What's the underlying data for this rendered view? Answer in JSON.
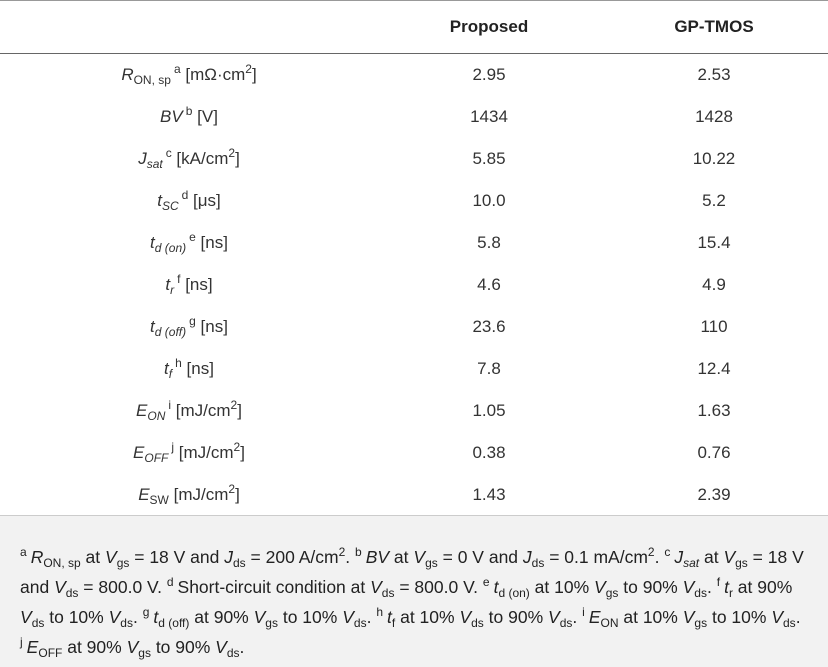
{
  "table": {
    "columns": [
      "Proposed",
      "GP-TMOS"
    ],
    "rows": [
      {
        "label": [
          "R",
          "ON, sp",
          "a",
          " [mΩ·cm",
          "2",
          "]"
        ],
        "proposed": "2.95",
        "gp_tmos": "2.53"
      },
      {
        "label": [
          "BV",
          "b",
          " [V]"
        ],
        "proposed": "1434",
        "gp_tmos": "1428"
      },
      {
        "label": [
          "J",
          "sat",
          "c",
          " [kA/cm",
          "2",
          "]"
        ],
        "proposed": "5.85",
        "gp_tmos": "10.22"
      },
      {
        "label": [
          "t",
          "SC",
          "d",
          " [μs]"
        ],
        "proposed": "10.0",
        "gp_tmos": "5.2"
      },
      {
        "label": [
          "t",
          "d (on)",
          "e",
          " [ns]"
        ],
        "proposed": "5.8",
        "gp_tmos": "15.4"
      },
      {
        "label": [
          "t",
          "r",
          "f",
          " [ns]"
        ],
        "proposed": "4.6",
        "gp_tmos": "4.9"
      },
      {
        "label": [
          "t",
          "d (off)",
          "g",
          " [ns]"
        ],
        "proposed": "23.6",
        "gp_tmos": "110"
      },
      {
        "label": [
          "t",
          "f",
          "h",
          " [ns]"
        ],
        "proposed": "7.8",
        "gp_tmos": "12.4"
      },
      {
        "label": [
          "E",
          "ON",
          "i",
          " [mJ/cm",
          "2",
          "]"
        ],
        "proposed": "1.05",
        "gp_tmos": "1.63"
      },
      {
        "label": [
          "E",
          "OFF",
          "j",
          " [mJ/cm",
          "2",
          "]"
        ],
        "proposed": "0.38",
        "gp_tmos": "0.76"
      },
      {
        "label": [
          "E",
          "SW",
          " [mJ/cm",
          "2",
          "]"
        ],
        "proposed": "1.43",
        "gp_tmos": "2.39"
      }
    ]
  },
  "footnote": [
    "a",
    "R",
    "ON, sp",
    " at ",
    "V",
    "gs",
    " = 18 V and ",
    "J",
    "ds",
    " = 200 A/cm",
    "2",
    ". ",
    "b",
    "BV",
    " at ",
    "V",
    "gs",
    " = 0 V and ",
    "J",
    "ds",
    " = 0.1 mA/cm",
    "2",
    ". ",
    "c",
    "J",
    "sat",
    " at ",
    "V",
    "gs",
    " = 18 V and ",
    "V",
    "ds",
    " = 800.0 V. ",
    "d",
    "Short-circuit condition at ",
    "V",
    "ds",
    " = 800.0 V. ",
    "e",
    "t",
    "d (on)",
    " at 10% ",
    "V",
    "gs",
    " to 90% ",
    "V",
    "ds",
    ". ",
    "f",
    "t",
    "r",
    " at 90% ",
    "V",
    "ds",
    " to 10% ",
    "V",
    "ds",
    ". ",
    "g",
    "t",
    "d (off)",
    " at 90% ",
    "V",
    "gs",
    " to 10% ",
    "V",
    "ds",
    ". ",
    "h",
    "t",
    "f",
    " at 10% ",
    "V",
    "ds",
    " to 90% ",
    "V",
    "ds",
    ". ",
    "i",
    "E",
    "ON",
    " at 10% ",
    "V",
    "gs",
    " to 10% ",
    "V",
    "ds",
    ". ",
    "j",
    "E",
    "OFF",
    " at 90% ",
    "V",
    "gs",
    " to 90% ",
    "V",
    "ds",
    "."
  ]
}
